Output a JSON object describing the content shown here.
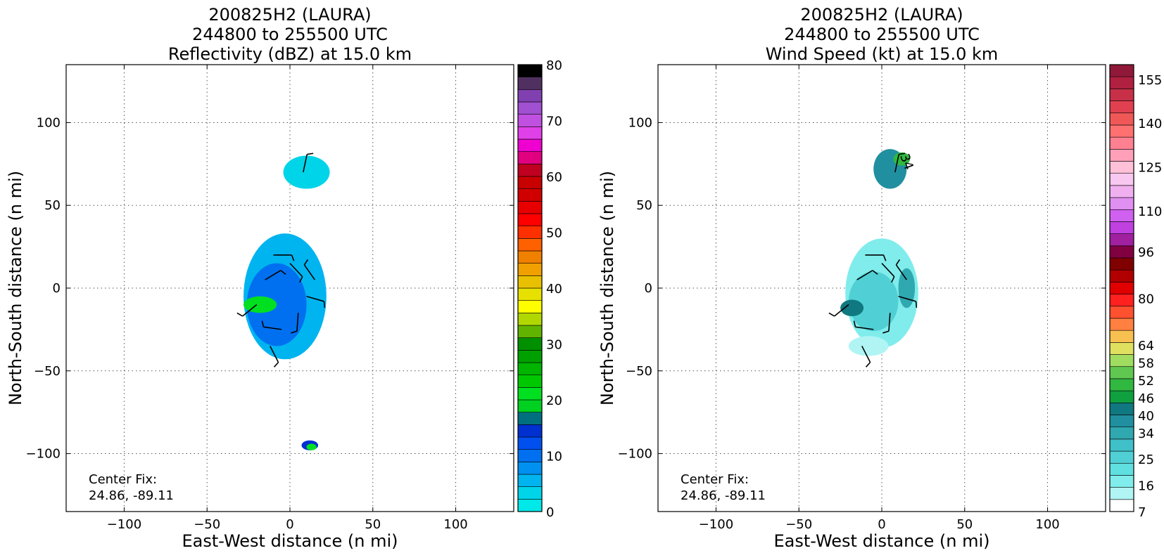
{
  "chart_data": [
    {
      "type": "heatmap",
      "title": [
        "200825H2 (LAURA)",
        "244800 to 255500 UTC",
        "Reflectivity (dBZ) at 15.0 km"
      ],
      "xlabel": "East-West distance (n mi)",
      "ylabel": "North-South distance (n mi)",
      "xlim": [
        -135,
        135
      ],
      "ylim": [
        -135,
        135
      ],
      "x_ticks": [
        -100,
        -50,
        0,
        50,
        100
      ],
      "y_ticks": [
        -100,
        -50,
        0,
        50,
        100
      ],
      "x_tick_labels": [
        "−100",
        "−50",
        "0",
        "50",
        "100"
      ],
      "y_tick_labels": [
        "−100",
        "−50",
        "0",
        "50",
        "100"
      ],
      "grid": true,
      "annotation": [
        "Center Fix:",
        "24.86, -89.11"
      ],
      "colorbar": {
        "min": 0,
        "max": 80,
        "colors": [
          "#00e8e8",
          "#00d4e8",
          "#00b4f0",
          "#0090f0",
          "#0070f0",
          "#0050f0",
          "#0030d0",
          "#007080",
          "#00d020",
          "#00e020",
          "#00c800",
          "#00b400",
          "#00a000",
          "#009000",
          "#60b400",
          "#b0d800",
          "#ffff00",
          "#e8e000",
          "#e8c000",
          "#f0a000",
          "#f08000",
          "#ff6000",
          "#ff3000",
          "#ff0000",
          "#e80000",
          "#d00000",
          "#c80000",
          "#c00020",
          "#e00080",
          "#f000d0",
          "#e040e8",
          "#c050e0",
          "#a050d0",
          "#8040b0",
          "#503060",
          "#000000"
        ],
        "tick_values": [
          0,
          10,
          20,
          30,
          40,
          50,
          60,
          70,
          80
        ],
        "tick_labels": [
          "0",
          "10",
          "20",
          "30",
          "40",
          "50",
          "60",
          "70",
          "80"
        ]
      },
      "echo_regions": [
        {
          "name": "north-cluster",
          "center": [
            10,
            70
          ],
          "radii": [
            14,
            10
          ],
          "color": "#00d4e8"
        },
        {
          "name": "main-envelope",
          "center": [
            -3,
            -5
          ],
          "radii": [
            25,
            38
          ],
          "color": "#00b4f0"
        },
        {
          "name": "inner-core",
          "center": [
            -8,
            -10
          ],
          "radii": [
            18,
            25
          ],
          "color": "#0070f0"
        },
        {
          "name": "green-band",
          "center": [
            -18,
            -10
          ],
          "radii": [
            10,
            5
          ],
          "color": "#00e020"
        },
        {
          "name": "south-blob",
          "center": [
            12,
            -95
          ],
          "radii": [
            5,
            3
          ],
          "color": "#0030d0"
        },
        {
          "name": "south-blob-core",
          "center": [
            13,
            -96
          ],
          "radii": [
            3,
            2
          ],
          "color": "#00e020"
        }
      ]
    },
    {
      "type": "heatmap",
      "title": [
        "200825H2 (LAURA)",
        "244800 to 255500 UTC",
        "Wind Speed (kt) at 15.0 km"
      ],
      "xlabel": "East-West distance (n mi)",
      "ylabel": "North-South distance (n mi)",
      "xlim": [
        -135,
        135
      ],
      "ylim": [
        -135,
        135
      ],
      "x_ticks": [
        -100,
        -50,
        0,
        50,
        100
      ],
      "y_ticks": [
        -100,
        -50,
        0,
        50,
        100
      ],
      "x_tick_labels": [
        "−100",
        "−50",
        "0",
        "50",
        "100"
      ],
      "y_tick_labels": [
        "−100",
        "−50",
        "0",
        "50",
        "100"
      ],
      "grid": true,
      "annotation": [
        "Center Fix:",
        "24.86, -89.11"
      ],
      "contour_label": "34",
      "colorbar": {
        "min": 7,
        "max": 160,
        "colors": [
          "#ffffff",
          "#b0f4f4",
          "#80ecec",
          "#60e0e0",
          "#50d0d4",
          "#40c0c8",
          "#30a8b0",
          "#2090a0",
          "#107880",
          "#10a040",
          "#30b840",
          "#60c850",
          "#a0dc60",
          "#e0e060",
          "#f8c050",
          "#ff8040",
          "#ff5030",
          "#ff2020",
          "#e00000",
          "#b00000",
          "#800000",
          "#800040",
          "#a020a0",
          "#c040e0",
          "#d060f0",
          "#e090f0",
          "#f0b0f0",
          "#f8c8f0",
          "#ffc0d8",
          "#ffa0b8",
          "#ff8090",
          "#ff7070",
          "#f05858",
          "#e04050",
          "#c83048",
          "#b02040",
          "#901838"
        ],
        "tick_values": [
          7,
          16,
          25,
          34,
          40,
          46,
          52,
          58,
          64,
          80,
          96,
          110,
          125,
          140,
          155
        ],
        "tick_labels": [
          "7",
          "16",
          "25",
          "34",
          "40",
          "46",
          "52",
          "58",
          "64",
          "80",
          "96",
          "110",
          "125",
          "140",
          "155"
        ]
      },
      "echo_regions": [
        {
          "name": "north-cluster",
          "center": [
            5,
            72
          ],
          "radii": [
            10,
            12
          ],
          "color": "#2090a0"
        },
        {
          "name": "north-green",
          "center": [
            12,
            78
          ],
          "radii": [
            5,
            4
          ],
          "color": "#30b840"
        },
        {
          "name": "main-envelope",
          "center": [
            0,
            -3
          ],
          "radii": [
            22,
            33
          ],
          "color": "#80ecec"
        },
        {
          "name": "inner-ring",
          "center": [
            -5,
            -8
          ],
          "radii": [
            15,
            18
          ],
          "color": "#50d0d4"
        },
        {
          "name": "dark-core",
          "center": [
            -18,
            -12
          ],
          "radii": [
            7,
            5
          ],
          "color": "#107880"
        },
        {
          "name": "east-arc",
          "center": [
            15,
            0
          ],
          "radii": [
            5,
            12
          ],
          "color": "#30a8b0"
        },
        {
          "name": "south-band",
          "center": [
            -8,
            -35
          ],
          "radii": [
            12,
            6
          ],
          "color": "#b0f4f4"
        }
      ]
    }
  ]
}
